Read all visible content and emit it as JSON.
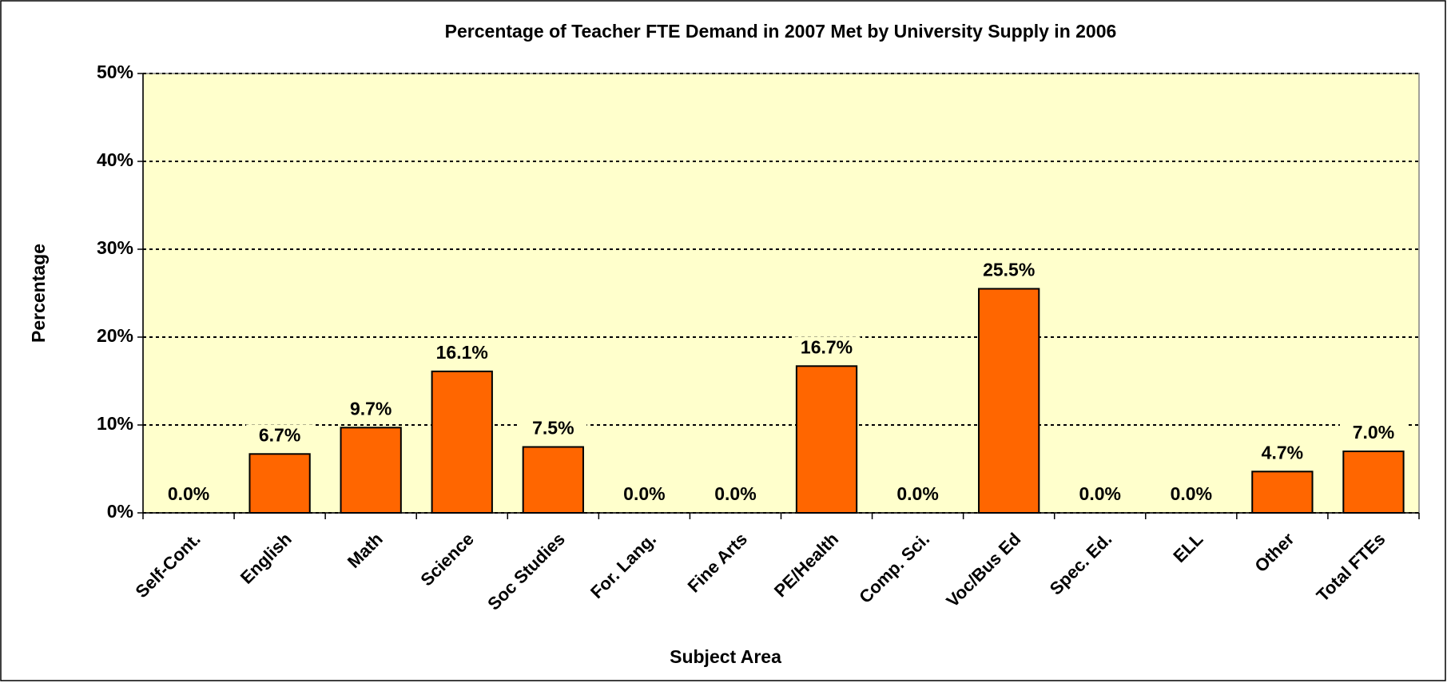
{
  "chart_data": {
    "type": "bar",
    "title": "Percentage of Teacher FTE Demand in 2007 Met by University Supply in 2006",
    "x_label": "Subject Area",
    "y_label": "Percentage",
    "categories": [
      "Self-Cont.",
      "English",
      "Math",
      "Science",
      "Soc Studies",
      "For. Lang.",
      "Fine Arts",
      "PE/Health",
      "Comp. Sci.",
      "Voc/Bus Ed",
      "Spec. Ed.",
      "ELL",
      "Other",
      "Total FTEs"
    ],
    "values": [
      0,
      6.7,
      9.7,
      16.1,
      7.5,
      0,
      0,
      16.7,
      0,
      25.5,
      0,
      0,
      4.7,
      7.0
    ],
    "value_labels": [
      "0.0%",
      "6.7%",
      "9.7%",
      "16.1%",
      "7.5%",
      "0.0%",
      "0.0%",
      "16.7%",
      "0.0%",
      "25.5%",
      "0.0%",
      "0.0%",
      "4.7%",
      "7.0%"
    ],
    "color": "#ff6600",
    "plot_background": "#ffffcc",
    "ylim": [
      0,
      50
    ],
    "yticks": [
      {
        "value": 0,
        "label": "0%"
      },
      {
        "value": 10,
        "label": "10%"
      },
      {
        "value": 20,
        "label": "20%"
      },
      {
        "value": 30,
        "label": "30%"
      },
      {
        "value": 40,
        "label": "40%"
      },
      {
        "value": 50,
        "label": "50%"
      }
    ],
    "grid": true
  }
}
